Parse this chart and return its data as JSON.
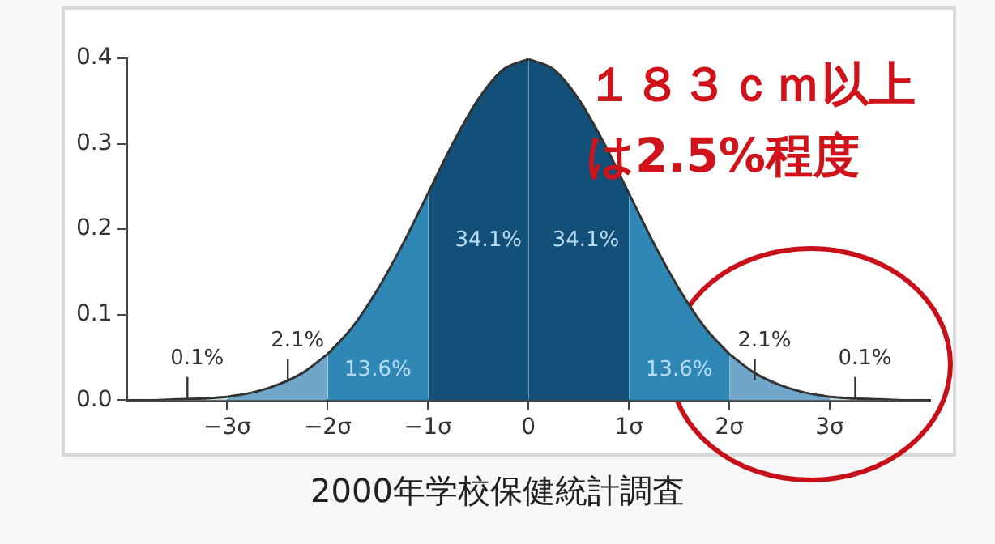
{
  "chart_data": {
    "type": "area",
    "title": "2000年学校保健統計調査",
    "xlim": [
      -4,
      4
    ],
    "ylim": [
      0,
      0.4
    ],
    "xticks": [
      {
        "value": -3,
        "label": "−3σ"
      },
      {
        "value": -2,
        "label": "−2σ"
      },
      {
        "value": -1,
        "label": "−1σ"
      },
      0,
      {
        "value": 1,
        "label": "1σ"
      },
      {
        "value": 2,
        "label": "2σ"
      },
      {
        "value": 3,
        "label": "3σ"
      }
    ],
    "yticks": [
      {
        "value": 0,
        "label": "0.0"
      },
      0.1,
      0.2,
      0.3,
      0.4
    ],
    "grid": false,
    "legend": false,
    "marker": "none",
    "line_style": "solid",
    "series": [
      {
        "color": "#c8dbe8",
        "x": [
          -4,
          -3.75,
          -3.5,
          -3.25,
          -3
        ],
        "values": [
          0,
          0,
          0.001,
          0.002,
          0.004
        ]
      },
      {
        "color": "#6fa6c9",
        "x": [
          -3,
          -2.75,
          -2.5,
          -2.25,
          -2
        ],
        "values": [
          0.004,
          0.009,
          0.018,
          0.032,
          0.054
        ]
      },
      {
        "color": "#2e87b5",
        "x": [
          -2,
          -1.75,
          -1.5,
          -1.25,
          -1
        ],
        "values": [
          0.054,
          0.086,
          0.13,
          0.183,
          0.242
        ]
      },
      {
        "color": "#135079",
        "x": [
          -1,
          -0.75,
          -0.5,
          -0.25,
          0
        ],
        "values": [
          0.242,
          0.301,
          0.352,
          0.387,
          0.399
        ]
      },
      {
        "color": "#135079",
        "x": [
          0,
          0.25,
          0.5,
          0.75,
          1
        ],
        "values": [
          0.399,
          0.387,
          0.352,
          0.301,
          0.242
        ]
      },
      {
        "color": "#2e87b5",
        "x": [
          1,
          1.25,
          1.5,
          1.75,
          2
        ],
        "values": [
          0.242,
          0.183,
          0.13,
          0.086,
          0.054
        ]
      },
      {
        "color": "#6fa6c9",
        "x": [
          2,
          2.25,
          2.5,
          2.75,
          3
        ],
        "values": [
          0.054,
          0.032,
          0.018,
          0.009,
          0.004
        ]
      },
      {
        "color": "#c8dbe8",
        "x": [
          3,
          3.25,
          3.5,
          3.75,
          4
        ],
        "values": [
          0.004,
          0.002,
          0.001,
          0,
          0
        ]
      }
    ],
    "annotations": [
      "0.1%",
      "2.1%",
      "13.6%",
      "34.1%",
      "34.1%",
      "13.6%",
      "2.1%",
      "0.1%",
      "１８３ｃｍ以上は2.5%程度"
    ]
  }
}
